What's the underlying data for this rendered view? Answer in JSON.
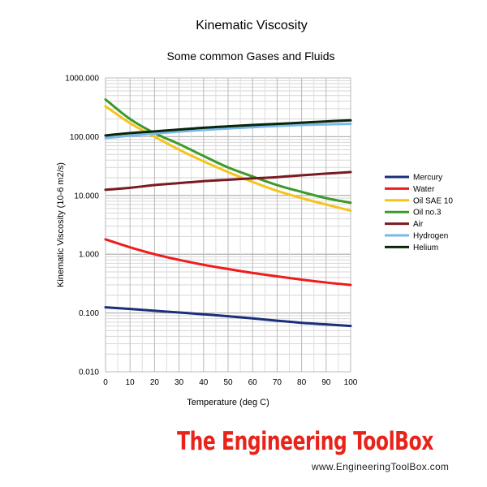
{
  "chart_data": {
    "type": "line",
    "title": "Kinematic Viscosity",
    "subtitle": "Some common Gases and Fluids",
    "xlabel": "Temperature (deg C)",
    "ylabel": "Kinematic Viscosity (10-6 m2/s)",
    "x": [
      0,
      10,
      20,
      30,
      40,
      50,
      60,
      70,
      80,
      90,
      100
    ],
    "xlim": [
      0,
      100
    ],
    "ylim": [
      0.01,
      1000
    ],
    "yscale": "log",
    "ytick_values": [
      0.01,
      0.1,
      1,
      10,
      100,
      1000
    ],
    "ytick_labels": [
      "0.010",
      "0.100",
      "1.000",
      "10.000",
      "100.000",
      "1000.000"
    ],
    "xtick_labels": [
      "0",
      "10",
      "20",
      "30",
      "40",
      "50",
      "60",
      "70",
      "80",
      "90",
      "100"
    ],
    "grid": true,
    "legend_position": "right",
    "series": [
      {
        "name": "Mercury",
        "color": "#1a2f7a",
        "values": [
          0.125,
          0.117,
          0.109,
          0.102,
          0.095,
          0.088,
          0.081,
          0.074,
          0.068,
          0.064,
          0.06
        ]
      },
      {
        "name": "Water",
        "color": "#ee1c1c",
        "values": [
          1.79,
          1.31,
          1.0,
          0.8,
          0.66,
          0.56,
          0.48,
          0.42,
          0.37,
          0.33,
          0.3
        ]
      },
      {
        "name": "Oil SAE 10",
        "color": "#f6c31c",
        "values": [
          330,
          170,
          100,
          60,
          38,
          25,
          17,
          12,
          9,
          7,
          5.5
        ]
      },
      {
        "name": "Oil no.3",
        "color": "#3c9a2a",
        "values": [
          430,
          200,
          115,
          75,
          47,
          30,
          21,
          15,
          11.5,
          9,
          7.5
        ]
      },
      {
        "name": "Air",
        "color": "#7a1a22",
        "values": [
          12.5,
          13.5,
          15,
          16.2,
          17.5,
          18.5,
          19.5,
          20.5,
          22,
          23.5,
          25
        ]
      },
      {
        "name": "Hydrogen",
        "color": "#7ab8ea",
        "values": [
          95,
          104,
          113,
          122,
          130,
          138,
          145,
          152,
          158,
          162,
          165
        ]
      },
      {
        "name": "Helium",
        "color": "#0a260a",
        "values": [
          105,
          115,
          123,
          132,
          142,
          150,
          158,
          165,
          173,
          182,
          190
        ]
      }
    ]
  },
  "branding": {
    "logo_text": "The Engineering ToolBox",
    "url": "www.EngineeringToolBox.com"
  }
}
